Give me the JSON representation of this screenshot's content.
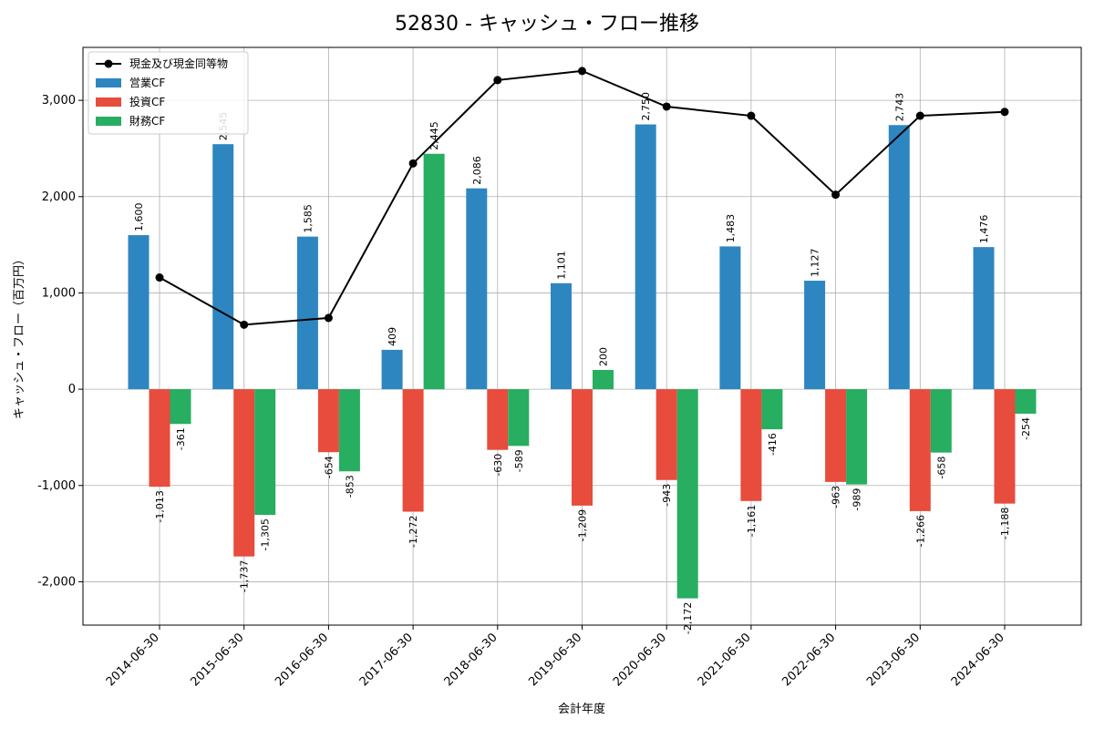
{
  "chart_data": {
    "type": "bar",
    "title": "52830 - キャッシュ・フロー推移",
    "xlabel": "会計年度",
    "ylabel": "キャッシュ・フロー（百万円）",
    "ylim": [
      -2450,
      3550
    ],
    "yticks": [
      -2000,
      -1000,
      0,
      1000,
      2000,
      3000
    ],
    "ytick_labels": [
      "-2,000",
      "-1,000",
      "0",
      "1,000",
      "2,000",
      "3,000"
    ],
    "grid": true,
    "legend_position": "top-left",
    "categories": [
      "2014-06-30",
      "2015-06-30",
      "2016-06-30",
      "2017-06-30",
      "2018-06-30",
      "2019-06-30",
      "2020-06-30",
      "2021-06-30",
      "2022-06-30",
      "2023-06-30",
      "2024-06-30"
    ],
    "series": [
      {
        "name": "営業CF",
        "kind": "bar",
        "color": "#2e86c1",
        "values": [
          1600,
          2545,
          1585,
          409,
          2086,
          1101,
          2750,
          1483,
          1127,
          2743,
          1476
        ],
        "labels": [
          "1,600",
          "2,545",
          "1,585",
          "409",
          "2,086",
          "1,101",
          "2,750",
          "1,483",
          "1,127",
          "2,743",
          "1,476"
        ]
      },
      {
        "name": "投資CF",
        "kind": "bar",
        "color": "#e74c3c",
        "values": [
          -1013,
          -1737,
          -654,
          -1272,
          -630,
          -1209,
          -943,
          -1161,
          -963,
          -1266,
          -1188
        ],
        "labels": [
          "-1,013",
          "-1,737",
          "-654",
          "-1,272",
          "-630",
          "-1,209",
          "-943",
          "-1,161",
          "-963",
          "-1,266",
          "-1,188"
        ]
      },
      {
        "name": "財務CF",
        "kind": "bar",
        "color": "#27ae60",
        "values": [
          -361,
          -1305,
          -853,
          2445,
          -589,
          200,
          -2172,
          -416,
          -989,
          -658,
          -254
        ],
        "labels": [
          "-361",
          "-1,305",
          "-853",
          "2,445",
          "-589",
          "200",
          "-2,172",
          "-416",
          "-989",
          "-658",
          "-254"
        ]
      },
      {
        "name": "現金及び現金同等物",
        "kind": "line",
        "color": "#000000",
        "values": [
          1160,
          670,
          740,
          2345,
          3210,
          3305,
          2935,
          2840,
          2020,
          2840,
          2880
        ]
      }
    ]
  }
}
